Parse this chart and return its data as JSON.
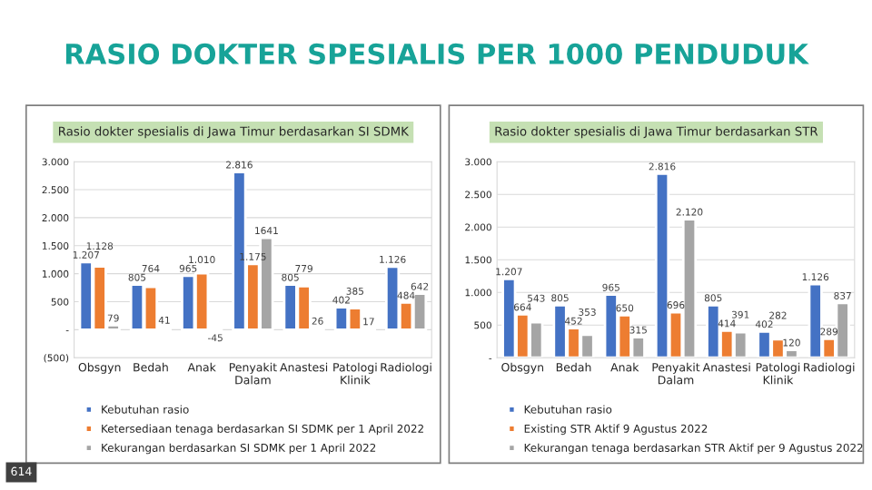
{
  "chart_data": [
    {
      "type": "bar",
      "title": "Rasio dokter spesialis di Jawa Timur berdasarkan SI SDMK",
      "annotations": [
        "RASIO DOKTER SPESIALIS PER 1000 PENDUDUK",
        "614"
      ],
      "categories": [
        "Obsgyn",
        "Bedah",
        "Anak",
        "Penyakit\nDalam",
        "Anastesi",
        "Patologi\nKlinik",
        "Radiologi"
      ],
      "series": [
        {
          "name": "Kebutuhan rasio",
          "color": "#4472c4",
          "values": [
            1207,
            805,
            965,
            2816,
            805,
            402,
            1126
          ],
          "value_labels": [
            "1.207",
            "805",
            "965",
            "2.816",
            "805",
            "402",
            "1.126"
          ]
        },
        {
          "name": "Ketersediaan tenaga berdasarkan SI SDMK per 1 April 2022",
          "color": "#ed7d31",
          "values": [
            1128,
            764,
            1010,
            1175,
            779,
            385,
            484
          ],
          "value_labels": [
            "1.128",
            "764",
            "1.010",
            "1.175",
            "779",
            "385",
            "484"
          ]
        },
        {
          "name": "Kekurangan berdasarkan SI SDMK per 1 April 2022",
          "color": "#a5a5a5",
          "values": [
            79,
            41,
            -45,
            1641,
            26,
            17,
            642
          ],
          "value_labels": [
            "79",
            "41",
            "-45",
            "1641",
            "26",
            "17",
            "642"
          ]
        }
      ],
      "ylim": [
        -500,
        3000
      ],
      "yticks": [
        {
          "value": -500,
          "label": "(500)"
        },
        {
          "value": 0,
          "label": "-"
        },
        {
          "value": 500,
          "label": "500"
        },
        {
          "value": 1000,
          "label": "1.000"
        },
        {
          "value": 1500,
          "label": "1.500"
        },
        {
          "value": 2000,
          "label": "2.000"
        },
        {
          "value": 2500,
          "label": "2.500"
        },
        {
          "value": 3000,
          "label": "3.000"
        }
      ],
      "grid": "y",
      "legend": "bottom"
    },
    {
      "type": "bar",
      "title": "Rasio dokter spesialis di Jawa Timur berdasarkan STR",
      "categories": [
        "Obsgyn",
        "Bedah",
        "Anak",
        "Penyakit\nDalam",
        "Anastesi",
        "Patologi\nKlinik",
        "Radiologi"
      ],
      "series": [
        {
          "name": "Kebutuhan rasio",
          "color": "#4472c4",
          "values": [
            1207,
            805,
            965,
            2816,
            805,
            402,
            1126
          ],
          "value_labels": [
            "1.207",
            "805",
            "965",
            "2.816",
            "805",
            "402",
            "1.126"
          ]
        },
        {
          "name": "Existing STR Aktif 9 Agustus 2022",
          "color": "#ed7d31",
          "values": [
            664,
            452,
            650,
            696,
            414,
            282,
            289
          ],
          "value_labels": [
            "664",
            "452",
            "650",
            "696",
            "414",
            "282",
            "289"
          ]
        },
        {
          "name": "Kekurangan tenaga berdasarkan STR Aktif per 9 Agustus 2022",
          "color": "#a5a5a5",
          "values": [
            543,
            353,
            315,
            2120,
            391,
            120,
            837
          ],
          "value_labels": [
            "543",
            "353",
            "315",
            "2.120",
            "391",
            "120",
            "837"
          ]
        }
      ],
      "ylim": [
        0,
        3000
      ],
      "yticks": [
        {
          "value": 0,
          "label": "-"
        },
        {
          "value": 500,
          "label": "500"
        },
        {
          "value": 1000,
          "label": "1.000"
        },
        {
          "value": 1500,
          "label": "1.500"
        },
        {
          "value": 2000,
          "label": "2.000"
        },
        {
          "value": 2500,
          "label": "2.500"
        },
        {
          "value": 3000,
          "label": "3.000"
        }
      ],
      "grid": "y",
      "legend": "bottom"
    }
  ]
}
